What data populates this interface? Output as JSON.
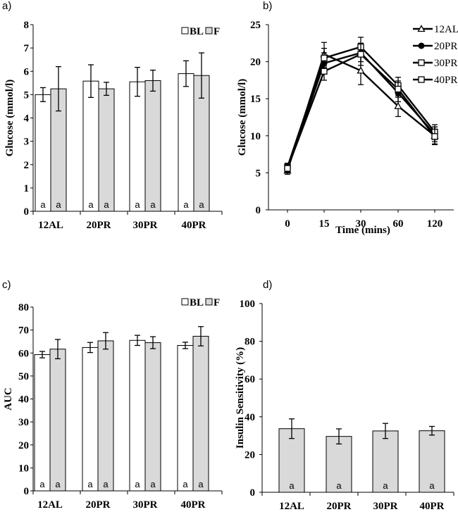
{
  "colors": {
    "bl_fill": "#ffffff",
    "f_fill": "#d9d9d9",
    "stroke": "#000000"
  },
  "chart_data": [
    {
      "id": "a",
      "type": "bar",
      "panel_label": "a)",
      "title": "",
      "xlabel": "",
      "ylabel": "Glucose (mmol/l)",
      "categories": [
        "12AL",
        "20PR",
        "30PR",
        "40PR"
      ],
      "ylim": [
        0,
        8
      ],
      "yticks": [
        0,
        1,
        2,
        3,
        4,
        5,
        6,
        7,
        8
      ],
      "legend": [
        "BL",
        "F"
      ],
      "series": [
        {
          "name": "BL",
          "values": [
            5.0,
            5.58,
            5.55,
            5.9
          ],
          "errors": [
            0.3,
            0.7,
            0.62,
            0.55
          ]
        },
        {
          "name": "F",
          "values": [
            5.25,
            5.25,
            5.6,
            5.82
          ],
          "errors": [
            0.95,
            0.28,
            0.45,
            0.97
          ]
        }
      ],
      "bar_labels": [
        [
          "a",
          "a"
        ],
        [
          "a",
          "a"
        ],
        [
          "a",
          "a"
        ],
        [
          "a",
          "a"
        ]
      ]
    },
    {
      "id": "b",
      "type": "line",
      "panel_label": "b)",
      "title": "",
      "xlabel": "Time (mins)",
      "ylabel": "Glucose (mmol/l)",
      "x": [
        "0",
        "15",
        "30",
        "60",
        "120"
      ],
      "ylim": [
        0,
        25
      ],
      "yticks": [
        0,
        5,
        10,
        15,
        20,
        25
      ],
      "series": [
        {
          "name": "12AL",
          "marker": "triangle",
          "values": [
            5.3,
            21.0,
            18.8,
            14.0,
            10.0
          ],
          "errors": [
            0.5,
            1.6,
            1.9,
            1.4,
            1.2
          ]
        },
        {
          "name": "20PR",
          "marker": "circle",
          "values": [
            5.5,
            19.8,
            21.2,
            15.8,
            10.2
          ],
          "errors": [
            0.5,
            1.4,
            1.2,
            1.2,
            1.0
          ]
        },
        {
          "name": "30PR",
          "marker": "square",
          "values": [
            5.8,
            20.5,
            22.0,
            16.8,
            10.5
          ],
          "errors": [
            0.5,
            1.3,
            1.3,
            1.1,
            1.0
          ]
        },
        {
          "name": "40PR",
          "marker": "square",
          "values": [
            5.6,
            18.7,
            21.0,
            16.3,
            9.9
          ],
          "errors": [
            0.5,
            1.2,
            1.5,
            1.1,
            1.0
          ]
        }
      ]
    },
    {
      "id": "c",
      "type": "bar",
      "panel_label": "c)",
      "title": "",
      "xlabel": "",
      "ylabel": "AUC",
      "categories": [
        "12AL",
        "20PR",
        "30PR",
        "40PR"
      ],
      "ylim": [
        0,
        80
      ],
      "yticks": [
        0,
        10,
        20,
        30,
        40,
        50,
        60,
        70,
        80
      ],
      "legend": [
        "BL",
        "F"
      ],
      "series": [
        {
          "name": "BL",
          "values": [
            59.3,
            62.4,
            65.5,
            63.3
          ],
          "errors": [
            1.4,
            2.2,
            2.2,
            1.4
          ]
        },
        {
          "name": "F",
          "values": [
            61.7,
            65.3,
            64.5,
            67.3
          ],
          "errors": [
            4.2,
            3.6,
            2.6,
            4.2
          ]
        }
      ],
      "bar_labels": [
        [
          "a",
          "a"
        ],
        [
          "a",
          "a"
        ],
        [
          "a",
          "a"
        ],
        [
          "a",
          "a"
        ]
      ]
    },
    {
      "id": "d",
      "type": "bar",
      "panel_label": "d)",
      "title": "",
      "xlabel": "",
      "ylabel": "Insulin Sensitivity (%)",
      "categories": [
        "12AL",
        "20PR",
        "30PR",
        "40PR"
      ],
      "ylim": [
        0,
        100
      ],
      "yticks": [
        0,
        20,
        40,
        60,
        80,
        100
      ],
      "series": [
        {
          "name": "F",
          "values": [
            33.7,
            29.6,
            32.5,
            32.6
          ],
          "errors": [
            5.2,
            4.0,
            4.0,
            2.3
          ]
        }
      ],
      "bar_labels": [
        [
          "a"
        ],
        [
          "a"
        ],
        [
          "a"
        ],
        [
          "a"
        ]
      ]
    }
  ]
}
